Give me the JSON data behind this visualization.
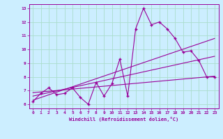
{
  "title": "",
  "xlabel": "Windchill (Refroidissement éolien,°C)",
  "background_color": "#cceeff",
  "grid_color": "#aaddcc",
  "line_color": "#990099",
  "xlim": [
    -0.5,
    23.5
  ],
  "ylim": [
    5.7,
    13.3
  ],
  "xticks": [
    0,
    1,
    2,
    3,
    4,
    5,
    6,
    7,
    8,
    9,
    10,
    11,
    12,
    13,
    14,
    15,
    16,
    17,
    18,
    19,
    20,
    21,
    22,
    23
  ],
  "yticks": [
    6,
    7,
    8,
    9,
    10,
    11,
    12,
    13
  ],
  "series1_x": [
    0,
    1,
    2,
    3,
    4,
    5,
    6,
    7,
    8,
    9,
    10,
    11,
    12,
    13,
    14,
    15,
    16,
    17,
    18,
    19,
    20,
    21,
    22,
    23
  ],
  "series1_y": [
    6.2,
    6.8,
    7.2,
    6.7,
    6.8,
    7.2,
    6.5,
    6.0,
    7.6,
    6.6,
    7.5,
    9.3,
    6.6,
    11.5,
    13.0,
    11.8,
    12.0,
    11.5,
    10.8,
    9.8,
    9.9,
    9.2,
    8.0,
    8.0
  ],
  "series2_x": [
    0,
    23
  ],
  "series2_y": [
    6.3,
    10.8
  ],
  "series3_x": [
    0,
    23
  ],
  "series3_y": [
    6.6,
    9.5
  ],
  "series4_x": [
    0,
    23
  ],
  "series4_y": [
    6.85,
    8.05
  ]
}
